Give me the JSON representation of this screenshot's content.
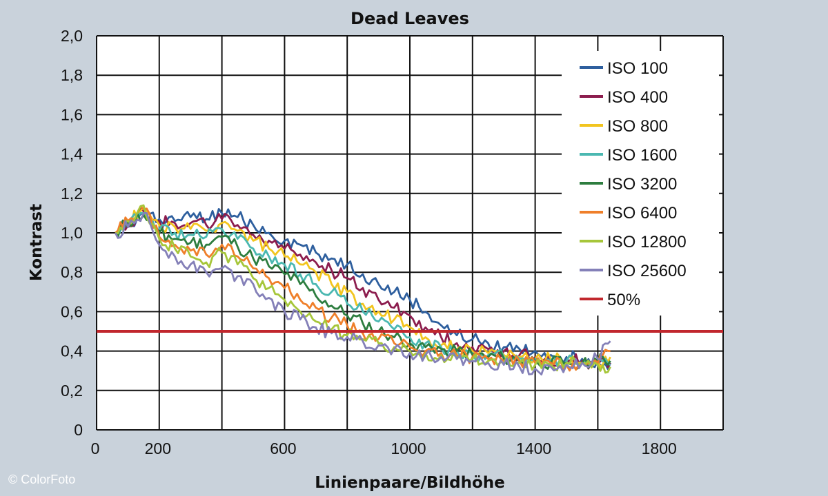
{
  "copyright": "© ColorFoto",
  "chart_data": {
    "type": "line",
    "title": "Dead Leaves",
    "xlabel": "Linienpaare/Bildhöhe",
    "ylabel": "Kontrast",
    "xlim": [
      0,
      2000
    ],
    "ylim": [
      0,
      2.0
    ],
    "grid": true,
    "legend_position": "top-right",
    "xticks": [
      0,
      200,
      400,
      600,
      800,
      1000,
      1200,
      1400,
      1600,
      1800,
      2000
    ],
    "xtick_labels": [
      "0",
      "200",
      "600",
      "1000",
      "1400",
      "1800"
    ],
    "xtick_label_values": [
      0,
      200,
      600,
      1000,
      1400,
      1800
    ],
    "yticks": [
      0,
      0.2,
      0.4,
      0.6,
      0.8,
      1.0,
      1.2,
      1.4,
      1.6,
      1.8,
      2.0
    ],
    "ytick_labels": [
      "0",
      "0,2",
      "0,4",
      "0,6",
      "0,8",
      "1,0",
      "1,2",
      "1,4",
      "1,6",
      "1,8",
      "2,0"
    ],
    "reference_line": {
      "name": "50%",
      "y": 0.5,
      "color": "#c1272d"
    },
    "series": [
      {
        "name": "ISO 100",
        "color": "#2e5f9e",
        "x": [
          60,
          100,
          150,
          200,
          250,
          300,
          350,
          400,
          450,
          500,
          550,
          600,
          650,
          700,
          750,
          800,
          850,
          900,
          950,
          1000,
          1050,
          1100,
          1150,
          1200,
          1250,
          1300,
          1350,
          1400,
          1450,
          1500,
          1550,
          1600,
          1640
        ],
        "y": [
          1.0,
          1.03,
          1.1,
          1.07,
          1.06,
          1.08,
          1.07,
          1.1,
          1.08,
          1.04,
          1.0,
          0.96,
          0.94,
          0.9,
          0.87,
          0.84,
          0.79,
          0.74,
          0.7,
          0.66,
          0.6,
          0.53,
          0.48,
          0.46,
          0.44,
          0.42,
          0.41,
          0.4,
          0.38,
          0.37,
          0.36,
          0.35,
          0.34
        ]
      },
      {
        "name": "ISO 400",
        "color": "#8c1d4e",
        "x": [
          60,
          100,
          150,
          200,
          250,
          300,
          350,
          400,
          450,
          500,
          550,
          600,
          650,
          700,
          750,
          800,
          850,
          900,
          950,
          1000,
          1050,
          1100,
          1150,
          1200,
          1250,
          1300,
          1350,
          1400,
          1450,
          1500,
          1550,
          1600,
          1640
        ],
        "y": [
          1.0,
          1.04,
          1.11,
          1.06,
          1.05,
          1.05,
          1.04,
          1.07,
          1.04,
          0.99,
          0.96,
          0.92,
          0.89,
          0.85,
          0.81,
          0.77,
          0.72,
          0.66,
          0.62,
          0.58,
          0.52,
          0.47,
          0.44,
          0.42,
          0.41,
          0.4,
          0.38,
          0.37,
          0.36,
          0.35,
          0.35,
          0.34,
          0.34
        ]
      },
      {
        "name": "ISO 800",
        "color": "#f2c51f",
        "x": [
          60,
          100,
          150,
          200,
          250,
          300,
          350,
          400,
          450,
          500,
          550,
          600,
          650,
          700,
          750,
          800,
          850,
          900,
          950,
          1000,
          1050,
          1100,
          1150,
          1200,
          1250,
          1300,
          1350,
          1400,
          1450,
          1500,
          1550,
          1600,
          1640
        ],
        "y": [
          1.0,
          1.05,
          1.13,
          1.04,
          1.03,
          1.02,
          1.01,
          1.05,
          1.01,
          0.96,
          0.92,
          0.88,
          0.84,
          0.8,
          0.74,
          0.7,
          0.64,
          0.6,
          0.56,
          0.52,
          0.47,
          0.43,
          0.41,
          0.4,
          0.39,
          0.38,
          0.37,
          0.36,
          0.36,
          0.35,
          0.34,
          0.35,
          0.37
        ]
      },
      {
        "name": "ISO 1600",
        "color": "#4bb8b1",
        "x": [
          60,
          100,
          150,
          200,
          250,
          300,
          350,
          400,
          450,
          500,
          550,
          600,
          650,
          700,
          750,
          800,
          850,
          900,
          950,
          1000,
          1050,
          1100,
          1150,
          1200,
          1250,
          1300,
          1350,
          1400,
          1450,
          1500,
          1550,
          1600,
          1640
        ],
        "y": [
          1.0,
          1.04,
          1.1,
          1.02,
          1.0,
          0.99,
          0.98,
          1.02,
          0.97,
          0.92,
          0.88,
          0.84,
          0.79,
          0.74,
          0.7,
          0.64,
          0.6,
          0.55,
          0.51,
          0.47,
          0.44,
          0.42,
          0.4,
          0.39,
          0.38,
          0.37,
          0.36,
          0.36,
          0.35,
          0.35,
          0.34,
          0.34,
          0.33
        ]
      },
      {
        "name": "ISO 3200",
        "color": "#2d7d3f",
        "x": [
          60,
          100,
          150,
          200,
          250,
          300,
          350,
          400,
          450,
          500,
          550,
          600,
          650,
          700,
          750,
          800,
          850,
          900,
          950,
          1000,
          1050,
          1100,
          1150,
          1200,
          1250,
          1300,
          1350,
          1400,
          1450,
          1500,
          1550,
          1600,
          1640
        ],
        "y": [
          1.0,
          1.05,
          1.09,
          1.0,
          0.97,
          0.95,
          0.94,
          0.98,
          0.93,
          0.87,
          0.83,
          0.79,
          0.74,
          0.68,
          0.63,
          0.58,
          0.54,
          0.5,
          0.47,
          0.44,
          0.42,
          0.41,
          0.4,
          0.38,
          0.37,
          0.36,
          0.35,
          0.35,
          0.34,
          0.34,
          0.34,
          0.35,
          0.35
        ]
      },
      {
        "name": "ISO 6400",
        "color": "#ef7f2a",
        "x": [
          60,
          100,
          150,
          200,
          250,
          300,
          350,
          400,
          450,
          500,
          550,
          600,
          650,
          700,
          750,
          800,
          850,
          900,
          950,
          1000,
          1050,
          1100,
          1150,
          1200,
          1250,
          1300,
          1350,
          1400,
          1450,
          1500,
          1550,
          1600,
          1640
        ],
        "y": [
          1.0,
          1.06,
          1.12,
          0.98,
          0.94,
          0.91,
          0.89,
          0.94,
          0.88,
          0.82,
          0.77,
          0.72,
          0.66,
          0.62,
          0.57,
          0.53,
          0.49,
          0.46,
          0.44,
          0.42,
          0.4,
          0.39,
          0.38,
          0.37,
          0.36,
          0.35,
          0.35,
          0.34,
          0.34,
          0.33,
          0.34,
          0.34,
          0.4
        ]
      },
      {
        "name": "ISO 12800",
        "color": "#a6c63a",
        "x": [
          60,
          100,
          150,
          200,
          250,
          300,
          350,
          400,
          450,
          500,
          550,
          600,
          650,
          700,
          750,
          800,
          850,
          900,
          950,
          1000,
          1050,
          1100,
          1150,
          1200,
          1250,
          1300,
          1350,
          1400,
          1450,
          1500,
          1550,
          1600,
          1640
        ],
        "y": [
          1.0,
          1.06,
          1.14,
          0.97,
          0.92,
          0.88,
          0.85,
          0.9,
          0.84,
          0.77,
          0.72,
          0.66,
          0.6,
          0.55,
          0.51,
          0.48,
          0.46,
          0.44,
          0.42,
          0.4,
          0.39,
          0.38,
          0.37,
          0.36,
          0.35,
          0.34,
          0.34,
          0.33,
          0.33,
          0.34,
          0.34,
          0.33,
          0.32
        ]
      },
      {
        "name": "ISO 25600",
        "color": "#8480b8",
        "x": [
          60,
          100,
          150,
          200,
          250,
          300,
          350,
          400,
          450,
          500,
          550,
          600,
          650,
          700,
          750,
          800,
          850,
          900,
          950,
          1000,
          1050,
          1100,
          1150,
          1200,
          1250,
          1300,
          1350,
          1400,
          1450,
          1500,
          1550,
          1600,
          1640
        ],
        "y": [
          1.0,
          1.03,
          1.1,
          0.94,
          0.88,
          0.84,
          0.8,
          0.82,
          0.78,
          0.74,
          0.67,
          0.6,
          0.56,
          0.52,
          0.49,
          0.47,
          0.45,
          0.43,
          0.41,
          0.39,
          0.38,
          0.37,
          0.36,
          0.35,
          0.34,
          0.33,
          0.32,
          0.31,
          0.32,
          0.33,
          0.34,
          0.36,
          0.45
        ]
      }
    ]
  }
}
